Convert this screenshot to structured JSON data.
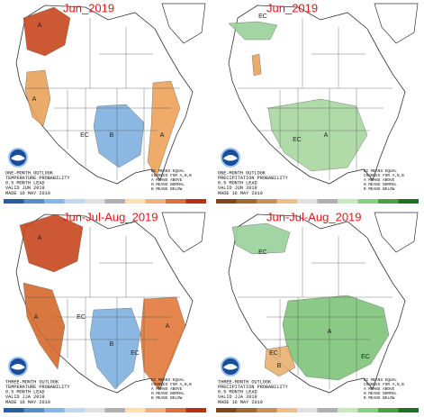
{
  "panels": [
    {
      "title": "Jun_2019",
      "outlook": [
        "ONE-MONTH OUTLOOK",
        "TEMPERATURE PROBABILITY",
        "0.5 MONTH LEAD",
        "VALID JUN 2019",
        "MADE 16 MAY 2019"
      ],
      "key": [
        "EC MEANS EQUAL",
        "CHANCES FOR A,N,B",
        "A MEANS ABOVE",
        "N MEANS NORMAL",
        "B MEANS BELOW"
      ],
      "labels": [
        "A",
        "A",
        "B",
        "EC",
        "A"
      ]
    },
    {
      "title": "Jun_2019",
      "outlook": [
        "ONE-MONTH OUTLOOK",
        "PRECIPITATION PROBABILITY",
        "0.5 MONTH LEAD",
        "VALID JUN 2019",
        "MADE 16 MAY 2019"
      ],
      "key": [
        "EC MEANS EQUAL",
        "CHANCES FOR A,N,B",
        "A MEANS ABOVE",
        "N MEANS NORMAL",
        "B MEANS BELOW"
      ],
      "labels": [
        "EC",
        "A",
        "EC"
      ]
    },
    {
      "title": "Jun-Jul-Aug_2019",
      "outlook": [
        "THREE-MONTH OUTLOOK",
        "TEMPERATURE PROBABILITY",
        "0.5 MONTH LEAD",
        "VALID JJA 2019",
        "MADE 16 MAY 2019"
      ],
      "key": [
        "EC MEANS EQUAL",
        "CHANCES FOR A,N,B",
        "A MEANS ABOVE",
        "N MEANS NORMAL",
        "B MEANS BELOW"
      ],
      "labels": [
        "A",
        "A",
        "EC",
        "B",
        "EC",
        "A"
      ]
    },
    {
      "title": "Jun-Jul-Aug_2019",
      "outlook": [
        "THREE-MONTH OUTLOOK",
        "PRECIPITATION PROBABILITY",
        "0.5 MONTH LEAD",
        "VALID JJA 2019",
        "MADE 16 MAY 2019"
      ],
      "key": [
        "EC MEANS EQUAL",
        "CHANCES FOR A,N,B",
        "A MEANS ABOVE",
        "N MEANS NORMAL",
        "B MEANS BELOW"
      ],
      "labels": [
        "EC",
        "A",
        "EC",
        "B",
        "EC"
      ]
    }
  ]
}
